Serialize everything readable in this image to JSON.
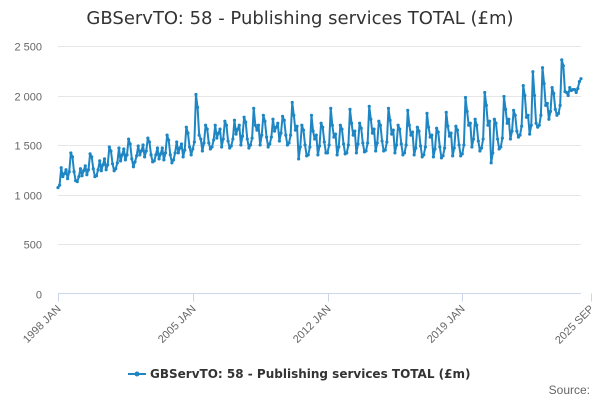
{
  "chart_data": {
    "type": "line",
    "title": "GBServTO: 58 - Publishing services TOTAL (£m)",
    "xlabel": "",
    "ylabel": "",
    "ylim": [
      0,
      2500
    ],
    "y_ticks": [
      "0",
      "500",
      "1 000",
      "1 500",
      "2 000",
      "2 500"
    ],
    "x_range": [
      "1998 JAN",
      "2025 SEP"
    ],
    "x_ticks": [
      "1998 JAN",
      "2005 JAN",
      "2012 JAN",
      "2019 JAN",
      "2025 SEP"
    ],
    "grid": "horizontal",
    "legend": "bottom",
    "series": [
      {
        "name": "GBServTO: 58 - Publishing services TOTAL (£m)",
        "color": "#1f86c4",
        "frequency": "monthly",
        "start": "1998 JAN",
        "values": [
          1070,
          1095,
          1270,
          1180,
          1210,
          1250,
          1160,
          1230,
          1420,
          1380,
          1230,
          1140,
          1130,
          1180,
          1260,
          1190,
          1240,
          1290,
          1200,
          1250,
          1410,
          1380,
          1260,
          1180,
          1190,
          1250,
          1340,
          1240,
          1300,
          1360,
          1250,
          1300,
          1480,
          1440,
          1310,
          1240,
          1260,
          1320,
          1470,
          1340,
          1400,
          1460,
          1350,
          1400,
          1560,
          1510,
          1360,
          1280,
          1330,
          1390,
          1490,
          1400,
          1440,
          1500,
          1380,
          1440,
          1570,
          1530,
          1400,
          1330,
          1340,
          1400,
          1470,
          1360,
          1410,
          1470,
          1350,
          1420,
          1600,
          1550,
          1400,
          1320,
          1350,
          1420,
          1530,
          1420,
          1470,
          1510,
          1380,
          1450,
          1680,
          1620,
          1480,
          1400,
          1460,
          1530,
          2010,
          1880,
          1600,
          1560,
          1440,
          1520,
          1700,
          1660,
          1520,
          1460,
          1480,
          1550,
          1700,
          1570,
          1620,
          1660,
          1480,
          1560,
          1740,
          1700,
          1540,
          1470,
          1490,
          1560,
          1750,
          1610,
          1660,
          1700,
          1500,
          1590,
          1780,
          1730,
          1560,
          1470,
          1500,
          1570,
          1870,
          1700,
          1650,
          1700,
          1500,
          1600,
          1800,
          1740,
          1580,
          1480,
          1510,
          1580,
          1760,
          1640,
          1680,
          1720,
          1540,
          1620,
          1790,
          1750,
          1600,
          1500,
          1520,
          1600,
          1930,
          1800,
          1650,
          1690,
          1360,
          1480,
          1700,
          1650,
          1500,
          1390,
          1400,
          1480,
          1800,
          1640,
          1560,
          1600,
          1400,
          1490,
          1720,
          1680,
          1530,
          1420,
          1420,
          1500,
          1870,
          1700,
          1580,
          1610,
          1400,
          1480,
          1700,
          1660,
          1510,
          1410,
          1420,
          1500,
          1860,
          1720,
          1600,
          1640,
          1420,
          1510,
          1720,
          1670,
          1520,
          1430,
          1440,
          1520,
          1890,
          1760,
          1620,
          1660,
          1440,
          1520,
          1740,
          1700,
          1540,
          1440,
          1450,
          1530,
          1870,
          1750,
          1610,
          1650,
          1420,
          1500,
          1700,
          1660,
          1510,
          1400,
          1420,
          1500,
          1850,
          1700,
          1600,
          1630,
          1400,
          1470,
          1680,
          1640,
          1490,
          1380,
          1400,
          1480,
          1820,
          1680,
          1580,
          1600,
          1380,
          1460,
          1670,
          1630,
          1480,
          1370,
          1390,
          1470,
          1830,
          1690,
          1590,
          1620,
          1390,
          1470,
          1690,
          1650,
          1500,
          1390,
          1410,
          1500,
          1980,
          1840,
          1700,
          1720,
          1480,
          1560,
          1760,
          1700,
          1540,
          1440,
          1470,
          1560,
          2030,
          1900,
          1700,
          1740,
          1320,
          1420,
          1760,
          1720,
          1560,
          1460,
          1480,
          1570,
          1990,
          1860,
          1720,
          1760,
          1560,
          1640,
          1850,
          1800,
          1640,
          1580,
          1600,
          1690,
          2100,
          2000,
          1780,
          1800,
          1610,
          1700,
          2240,
          2000,
          1720,
          1680,
          1700,
          1800,
          2280,
          2120,
          1900,
          1920,
          1760,
          1840,
          2080,
          2020,
          1860,
          1800,
          1820,
          1900,
          2360,
          2300,
          2040,
          2030,
          2000,
          2080,
          2050,
          2060,
          2060,
          2030,
          2070,
          2140,
          2170
        ]
      }
    ],
    "source": "Source:"
  }
}
